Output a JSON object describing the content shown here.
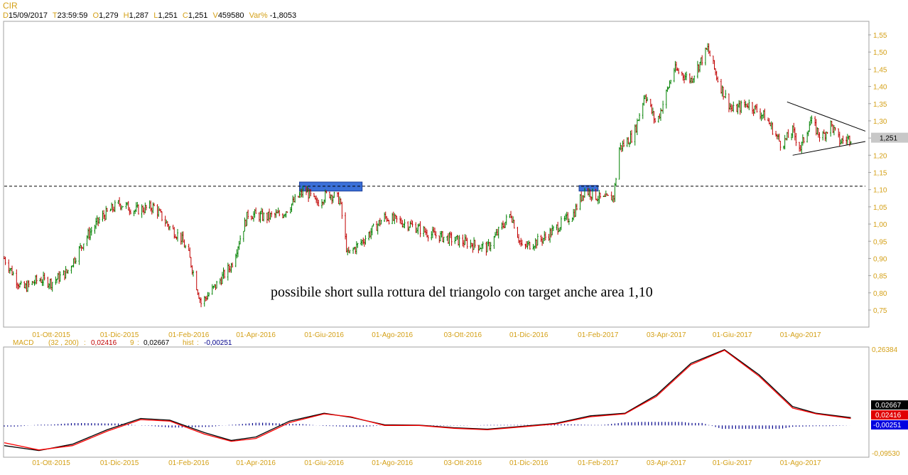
{
  "header": {
    "title": "CIR",
    "fields": [
      {
        "key": "D",
        "value": "15/09/2017"
      },
      {
        "key": "T",
        "value": "23:59:59"
      },
      {
        "key": "O",
        "value": "1,279"
      },
      {
        "key": "H",
        "value": "1,287"
      },
      {
        "key": "L",
        "value": "1,251"
      },
      {
        "key": "C",
        "value": "1,251"
      },
      {
        "key": "V",
        "value": "459580"
      },
      {
        "key": "Var%",
        "value": "-1,8053"
      }
    ]
  },
  "colors": {
    "up": "#008000",
    "down": "#c00000",
    "axis_text": "#d4a017",
    "macd_line": "#000000",
    "signal_line": "#ff0000",
    "hist": "#00008b",
    "highlight_box": "#3a6fd8"
  },
  "chart_data": [
    {
      "type": "candlestick",
      "title": "CIR",
      "ylim": [
        0.7,
        1.58
      ],
      "y_ticks": [
        "1,55",
        "1,50",
        "1,45",
        "1,40",
        "1,35",
        "1,30",
        "1,25",
        "1,20",
        "1,15",
        "1,10",
        "1,05",
        "1,00",
        "0,95",
        "0,90",
        "0,85",
        "0,80",
        "0,75"
      ],
      "x_ticks": [
        "01-Ott-2015",
        "01-Dic-2015",
        "01-Feb-2016",
        "01-Apr-2016",
        "01-Giu-2016",
        "01-Ago-2016",
        "03-Ott-2016",
        "01-Dic-2016",
        "01-Feb-2017",
        "03-Apr-2017",
        "01-Giu-2017",
        "01-Ago-2017"
      ],
      "last_price_label": "1,251",
      "last_price": 1.251,
      "price_path": [
        [
          "2015-08-20",
          0.9
        ],
        [
          "2015-09-05",
          0.81
        ],
        [
          "2015-09-20",
          0.84
        ],
        [
          "2015-10-01",
          0.83
        ],
        [
          "2015-10-15",
          0.86
        ],
        [
          "2015-11-01",
          0.96
        ],
        [
          "2015-11-15",
          1.02
        ],
        [
          "2015-12-01",
          1.06
        ],
        [
          "2015-12-15",
          1.04
        ],
        [
          "2016-01-01",
          1.05
        ],
        [
          "2016-01-15",
          0.99
        ],
        [
          "2016-01-25",
          0.96
        ],
        [
          "2016-02-01",
          0.91
        ],
        [
          "2016-02-12",
          0.77
        ],
        [
          "2016-02-25",
          0.82
        ],
        [
          "2016-03-10",
          0.88
        ],
        [
          "2016-03-25",
          1.03
        ],
        [
          "2016-04-10",
          1.02
        ],
        [
          "2016-04-25",
          1.03
        ],
        [
          "2016-05-15",
          1.1
        ],
        [
          "2016-05-25",
          1.06
        ],
        [
          "2016-06-05",
          1.09
        ],
        [
          "2016-06-15",
          1.07
        ],
        [
          "2016-06-22",
          0.91
        ],
        [
          "2016-07-05",
          0.95
        ],
        [
          "2016-07-25",
          1.02
        ],
        [
          "2016-08-15",
          1.0
        ],
        [
          "2016-09-05",
          0.97
        ],
        [
          "2016-10-01",
          0.95
        ],
        [
          "2016-10-25",
          0.93
        ],
        [
          "2016-11-15",
          1.03
        ],
        [
          "2016-11-25",
          0.93
        ],
        [
          "2016-12-15",
          0.96
        ],
        [
          "2017-01-10",
          1.03
        ],
        [
          "2017-01-20",
          1.1
        ],
        [
          "2017-02-05",
          1.07
        ],
        [
          "2017-02-15",
          1.08
        ],
        [
          "2017-02-20",
          1.22
        ],
        [
          "2017-03-05",
          1.26
        ],
        [
          "2017-03-15",
          1.38
        ],
        [
          "2017-03-25",
          1.29
        ],
        [
          "2017-04-10",
          1.45
        ],
        [
          "2017-04-25",
          1.42
        ],
        [
          "2017-05-10",
          1.51
        ],
        [
          "2017-05-20",
          1.41
        ],
        [
          "2017-06-01",
          1.33
        ],
        [
          "2017-06-15",
          1.35
        ],
        [
          "2017-07-01",
          1.31
        ],
        [
          "2017-07-15",
          1.23
        ],
        [
          "2017-07-25",
          1.27
        ],
        [
          "2017-08-01",
          1.22
        ],
        [
          "2017-08-10",
          1.3
        ],
        [
          "2017-08-20",
          1.25
        ],
        [
          "2017-08-28",
          1.29
        ],
        [
          "2017-09-05",
          1.24
        ],
        [
          "2017-09-15",
          1.251
        ]
      ],
      "horizontal_level": 1.11,
      "resistance_zones": [
        {
          "from": "2016-05-10",
          "to": "2016-07-05",
          "low": 1.1,
          "high": 1.12
        },
        {
          "from": "2017-01-15",
          "to": "2017-02-01",
          "low": 1.1,
          "high": 1.11
        }
      ],
      "triangle_lines": [
        {
          "x1": "2017-07-20",
          "y1": 1.355,
          "x2": "2017-09-28",
          "y2": 1.27
        },
        {
          "x1": "2017-07-25",
          "y1": 1.2,
          "x2": "2017-09-28",
          "y2": 1.24
        }
      ],
      "annotation": "possibile short sulla rottura del triangolo con target anche area 1,10"
    },
    {
      "type": "line",
      "title": "MACD",
      "params": "(32 , 200)",
      "macd_value": "0,02416",
      "signal_period": "9",
      "signal_value": "0,02667",
      "hist_label": "hist",
      "hist_value": "-0,00251",
      "ylim": [
        -0.0953,
        0.26384
      ],
      "y_ticks": [
        "0,26384",
        "-0,09530"
      ],
      "value_tags": [
        "0,02667",
        "0,02416",
        "-0,00251"
      ],
      "x_ticks": [
        "01-Ott-2015",
        "01-Dic-2015",
        "01-Feb-2016",
        "01-Apr-2016",
        "01-Giu-2016",
        "01-Ago-2016",
        "03-Ott-2016",
        "01-Dic-2016",
        "01-Feb-2017",
        "03-Apr-2017",
        "01-Giu-2017",
        "01-Ago-2017"
      ],
      "series": [
        {
          "values": [
            [
              "2015-08-20",
              -0.06
            ],
            [
              "2015-09-20",
              -0.085
            ],
            [
              "2015-10-20",
              -0.07
            ],
            [
              "2015-11-20",
              -0.02
            ],
            [
              "2015-12-20",
              0.02
            ],
            [
              "2016-01-15",
              0.015
            ],
            [
              "2016-02-15",
              -0.03
            ],
            [
              "2016-03-10",
              -0.055
            ],
            [
              "2016-04-01",
              -0.045
            ],
            [
              "2016-05-01",
              0.01
            ],
            [
              "2016-06-01",
              0.04
            ],
            [
              "2016-06-25",
              0.03
            ],
            [
              "2016-07-25",
              0.0
            ],
            [
              "2016-08-25",
              0.0
            ],
            [
              "2016-09-25",
              -0.01
            ],
            [
              "2016-10-25",
              -0.015
            ],
            [
              "2016-11-25",
              -0.005
            ],
            [
              "2016-12-25",
              0.005
            ],
            [
              "2017-01-25",
              0.03
            ],
            [
              "2017-02-25",
              0.04
            ],
            [
              "2017-03-25",
              0.1
            ],
            [
              "2017-04-25",
              0.21
            ],
            [
              "2017-05-25",
              0.26
            ],
            [
              "2017-06-25",
              0.17
            ],
            [
              "2017-07-25",
              0.06
            ],
            [
              "2017-08-15",
              0.04
            ],
            [
              "2017-09-15",
              0.024
            ]
          ]
        },
        {
          "values": [
            [
              "2015-08-20",
              -0.07
            ],
            [
              "2015-09-20",
              -0.087
            ],
            [
              "2015-10-20",
              -0.065
            ],
            [
              "2015-11-20",
              -0.015
            ],
            [
              "2015-12-20",
              0.024
            ],
            [
              "2016-01-15",
              0.018
            ],
            [
              "2016-02-15",
              -0.025
            ],
            [
              "2016-03-10",
              -0.052
            ],
            [
              "2016-04-01",
              -0.04
            ],
            [
              "2016-05-01",
              0.015
            ],
            [
              "2016-06-01",
              0.042
            ],
            [
              "2016-06-25",
              0.028
            ],
            [
              "2016-07-25",
              0.002
            ],
            [
              "2016-08-25",
              0.001
            ],
            [
              "2016-09-25",
              -0.008
            ],
            [
              "2016-10-25",
              -0.013
            ],
            [
              "2016-11-25",
              -0.003
            ],
            [
              "2016-12-25",
              0.007
            ],
            [
              "2017-01-25",
              0.033
            ],
            [
              "2017-02-25",
              0.042
            ],
            [
              "2017-03-25",
              0.105
            ],
            [
              "2017-04-25",
              0.215
            ],
            [
              "2017-05-25",
              0.262
            ],
            [
              "2017-06-25",
              0.175
            ],
            [
              "2017-07-25",
              0.065
            ],
            [
              "2017-08-15",
              0.042
            ],
            [
              "2017-09-15",
              0.027
            ]
          ]
        }
      ]
    }
  ]
}
